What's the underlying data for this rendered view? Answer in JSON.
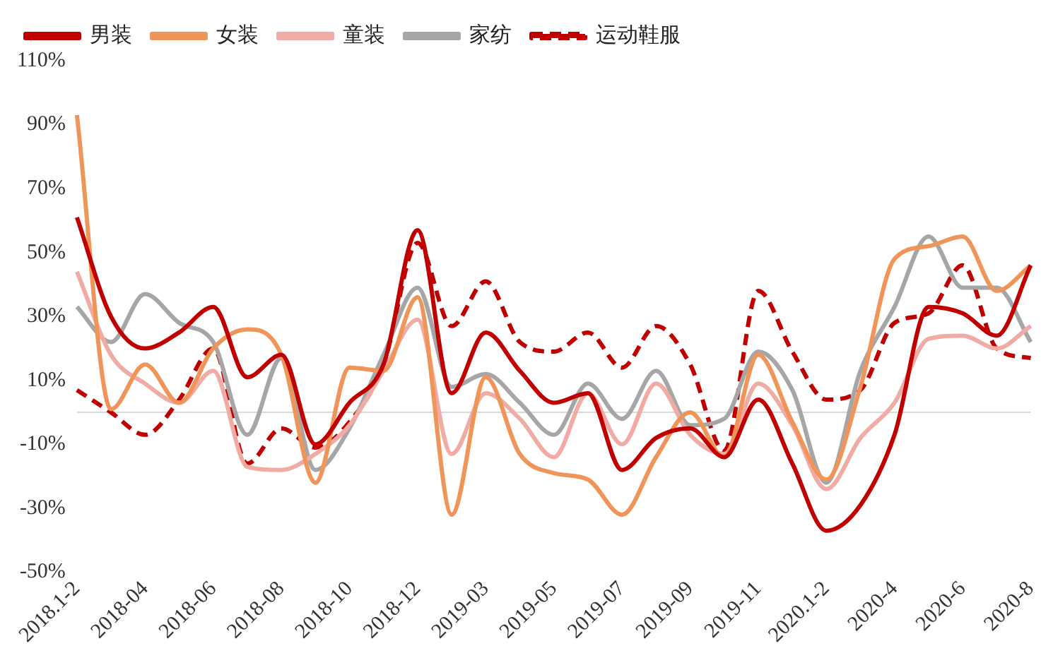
{
  "chart_data": {
    "type": "line",
    "categories": [
      "2018.1-2",
      null,
      "2018-04",
      null,
      "2018-06",
      null,
      "2018-08",
      null,
      "2018-10",
      null,
      "2018-12",
      null,
      "2019-03",
      null,
      "2019-05",
      null,
      "2019-07",
      null,
      "2019-09",
      null,
      "2019-11",
      null,
      "2020.1-2",
      null,
      "2020-4",
      null,
      "2020-6",
      null,
      "2020-8"
    ],
    "series": [
      {
        "name": "男装",
        "color": "#c00000",
        "line_style": "solid",
        "values": [
          61,
          30,
          20,
          25,
          33,
          11,
          18,
          -10,
          3,
          15,
          57,
          6,
          25,
          13,
          3,
          6,
          -18,
          -8,
          -5,
          -14,
          4,
          -16,
          -37,
          -29,
          -7,
          33,
          31,
          24,
          46
        ]
      },
      {
        "name": "女装",
        "color": "#f0955a",
        "line_style": "solid",
        "values": [
          93,
          1,
          15,
          3,
          20,
          26,
          18,
          -22,
          14,
          13,
          36,
          -32,
          11,
          -13,
          -19,
          -21,
          -32,
          -14,
          0,
          -14,
          18,
          -3,
          -21,
          8,
          48,
          52,
          55,
          38,
          46
        ]
      },
      {
        "name": "童装",
        "color": "#f0aca4",
        "line_style": "solid",
        "values": [
          44,
          18,
          9,
          3,
          13,
          -17,
          -18,
          -13,
          -4,
          13,
          29,
          -13,
          6,
          -2,
          -14,
          6,
          -10,
          9,
          -7,
          -13,
          9,
          -4,
          -24,
          -8,
          3,
          23,
          24,
          20,
          27
        ]
      },
      {
        "name": "家纺",
        "color": "#a6a6a6",
        "line_style": "solid",
        "values": [
          33,
          22,
          37,
          28,
          22,
          -7,
          17,
          -18,
          -5,
          18,
          39,
          8,
          12,
          3,
          -7,
          9,
          -2,
          13,
          -4,
          -2,
          19,
          7,
          -22,
          13,
          33,
          55,
          39,
          39,
          22
        ]
      },
      {
        "name": "运动鞋服",
        "color": "#c00000",
        "line_style": "dashed",
        "values": [
          7,
          0,
          -7,
          4,
          20,
          -16,
          -5,
          -11,
          -3,
          15,
          53,
          27,
          41,
          22,
          19,
          25,
          14,
          27,
          15,
          -12,
          38,
          19,
          4,
          7,
          28,
          31,
          46,
          20,
          17
        ]
      }
    ],
    "ylim": [
      -50,
      110
    ],
    "yticks": [
      {
        "value": -50,
        "label": "-50%"
      },
      {
        "value": -30,
        "label": "-30%"
      },
      {
        "value": -10,
        "label": "-10%"
      },
      {
        "value": 10,
        "label": "10%"
      },
      {
        "value": 30,
        "label": "30%"
      },
      {
        "value": 50,
        "label": "50%"
      },
      {
        "value": 70,
        "label": "70%"
      },
      {
        "value": 90,
        "label": "90%"
      },
      {
        "value": 110,
        "label": "110%"
      }
    ],
    "grid": false,
    "legend": "top",
    "marker": "none"
  }
}
